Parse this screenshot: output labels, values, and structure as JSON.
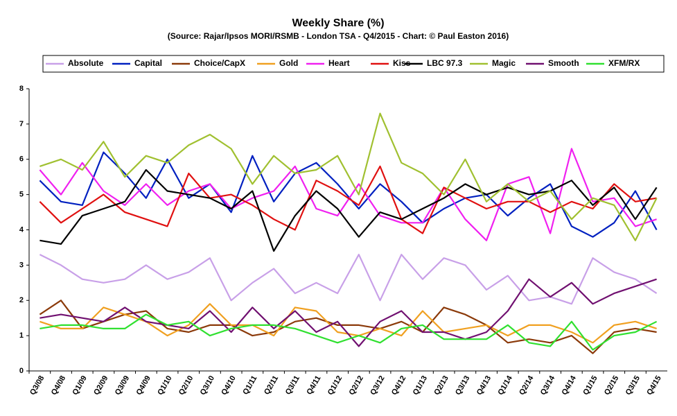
{
  "chart_data": {
    "type": "line",
    "title": "Weekly Share (%)",
    "subtitle": "(Source: Rajar/Ipsos MORI/RSMB - London TSA - Q4/2015 - Chart: © Paul Easton 2016)",
    "categories": [
      "Q3/08",
      "Q4/08",
      "Q1/09",
      "Q2/09",
      "Q3/09",
      "Q4/09",
      "Q1/10",
      "Q2/10",
      "Q3/10",
      "Q4/10",
      "Q1/11",
      "Q2/11",
      "Q3/11",
      "Q4/11",
      "Q1/12",
      "Q2/12",
      "Q3/12",
      "Q4/12",
      "Q1/13",
      "Q2/13",
      "Q3/13",
      "Q4/13",
      "Q1/14",
      "Q2/14",
      "Q3/14",
      "Q4/14",
      "Q1/15",
      "Q2/15",
      "Q3/15",
      "Q4/15"
    ],
    "ylim": [
      0,
      8
    ],
    "yticks": [
      0,
      1,
      2,
      3,
      4,
      5,
      6,
      7,
      8
    ],
    "grid": false,
    "legend": "top",
    "series": [
      {
        "name": "Absolute",
        "color": "#c8a0e8",
        "values": [
          3.3,
          3.0,
          2.6,
          2.5,
          2.6,
          3.0,
          2.6,
          2.8,
          3.2,
          2.0,
          2.5,
          2.9,
          2.2,
          2.5,
          2.2,
          3.3,
          2.0,
          3.3,
          2.6,
          3.2,
          3.0,
          2.3,
          2.7,
          2.0,
          2.1,
          1.9,
          3.2,
          2.8,
          2.6,
          2.2
        ]
      },
      {
        "name": "Capital",
        "color": "#0020c0",
        "values": [
          5.4,
          4.8,
          4.7,
          6.2,
          5.6,
          4.9,
          6.0,
          4.9,
          5.3,
          4.5,
          6.1,
          4.8,
          5.6,
          5.9,
          5.3,
          4.6,
          5.3,
          4.8,
          4.2,
          4.6,
          4.9,
          5.0,
          4.4,
          4.9,
          5.3,
          4.1,
          3.8,
          4.2,
          5.1,
          4.0
        ]
      },
      {
        "name": "Choice/CapX",
        "color": "#8b3a0a",
        "values": [
          1.6,
          2.0,
          1.2,
          1.4,
          1.6,
          1.7,
          1.2,
          1.1,
          1.3,
          1.3,
          1.0,
          1.1,
          1.4,
          1.5,
          1.3,
          1.3,
          1.2,
          1.4,
          1.1,
          1.8,
          1.6,
          1.3,
          0.8,
          0.9,
          0.8,
          1.0,
          0.5,
          1.1,
          1.2,
          1.1
        ]
      },
      {
        "name": "Gold",
        "color": "#f0a020",
        "values": [
          1.4,
          1.2,
          1.2,
          1.8,
          1.6,
          1.4,
          1.0,
          1.3,
          1.9,
          1.3,
          1.3,
          1.0,
          1.8,
          1.7,
          1.1,
          1.0,
          1.2,
          1.0,
          1.7,
          1.1,
          1.2,
          1.3,
          1.0,
          1.3,
          1.3,
          1.1,
          0.8,
          1.3,
          1.4,
          1.2
        ]
      },
      {
        "name": "Heart",
        "color": "#f020f0",
        "values": [
          5.7,
          5.0,
          5.9,
          5.1,
          4.7,
          5.3,
          4.7,
          5.1,
          5.3,
          4.6,
          4.9,
          5.1,
          5.8,
          4.6,
          4.4,
          5.3,
          4.4,
          4.2,
          4.2,
          5.2,
          4.3,
          3.7,
          5.3,
          5.5,
          3.9,
          6.3,
          4.8,
          4.9,
          4.1,
          4.3
        ]
      },
      {
        "name": "Kiss",
        "color": "#e01010",
        "values": [
          4.8,
          4.2,
          4.6,
          5.0,
          4.5,
          4.3,
          4.1,
          5.6,
          4.9,
          5.0,
          4.7,
          4.3,
          4.0,
          5.4,
          5.1,
          4.7,
          5.8,
          4.3,
          3.9,
          5.2,
          4.9,
          4.6,
          4.8,
          4.8,
          4.5,
          4.8,
          4.6,
          5.3,
          4.8,
          4.9
        ]
      },
      {
        "name": "LBC 97.3",
        "color": "#000000",
        "values": [
          3.7,
          3.6,
          4.4,
          4.6,
          4.8,
          5.7,
          5.1,
          5.0,
          4.9,
          4.6,
          5.1,
          3.4,
          4.4,
          5.1,
          4.6,
          3.8,
          4.5,
          4.3,
          4.6,
          4.9,
          5.3,
          5.0,
          5.2,
          5.0,
          5.1,
          5.4,
          4.7,
          5.2,
          4.3,
          5.2
        ]
      },
      {
        "name": "Magic",
        "color": "#a0c030",
        "values": [
          5.8,
          6.0,
          5.7,
          6.5,
          5.5,
          6.1,
          5.9,
          6.4,
          6.7,
          6.3,
          5.3,
          6.1,
          5.6,
          5.7,
          6.1,
          5.0,
          7.3,
          5.9,
          5.6,
          5.0,
          6.0,
          4.8,
          5.3,
          4.8,
          5.1,
          4.3,
          4.9,
          4.7,
          3.7,
          4.9
        ]
      },
      {
        "name": "Smooth",
        "color": "#701070",
        "values": [
          1.5,
          1.6,
          1.5,
          1.4,
          1.8,
          1.4,
          1.3,
          1.2,
          1.7,
          1.1,
          1.8,
          1.2,
          1.7,
          1.1,
          1.4,
          0.7,
          1.4,
          1.7,
          1.1,
          1.1,
          0.9,
          1.1,
          1.7,
          2.6,
          2.1,
          2.5,
          1.9,
          2.2,
          2.4,
          2.6
        ]
      },
      {
        "name": "XFM/RX",
        "color": "#30e030",
        "values": [
          1.2,
          1.3,
          1.3,
          1.2,
          1.2,
          1.6,
          1.3,
          1.4,
          1.0,
          1.2,
          1.3,
          1.3,
          1.2,
          1.0,
          0.8,
          1.0,
          0.8,
          1.2,
          1.3,
          0.9,
          0.9,
          0.9,
          1.3,
          0.8,
          0.7,
          1.4,
          0.6,
          1.0,
          1.1,
          1.4
        ]
      }
    ]
  }
}
